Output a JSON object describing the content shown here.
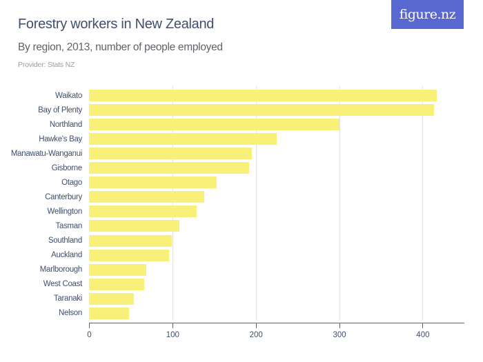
{
  "header": {
    "title": "Forestry workers in New Zealand",
    "subtitle": "By region, 2013, number of people employed",
    "provider": "Provider: Stats NZ",
    "logo": "figure.nz"
  },
  "colors": {
    "bar": "#f9f07a",
    "title": "#3e4f6e",
    "logo_bg": "#5968d0"
  },
  "chart_data": {
    "type": "bar",
    "orientation": "horizontal",
    "title": "Forestry workers in New Zealand",
    "subtitle": "By region, 2013, number of people employed",
    "xlabel": "",
    "ylabel": "",
    "categories": [
      "Waikato",
      "Bay of Plenty",
      "Northland",
      "Hawke's Bay",
      "Manawatu-Wanganui",
      "Gisborne",
      "Otago",
      "Canterbury",
      "Wellington",
      "Tasman",
      "Southland",
      "Auckland",
      "Marlborough",
      "West Coast",
      "Taranaki",
      "Nelson"
    ],
    "values": [
      417,
      414,
      300,
      225,
      195,
      192,
      153,
      138,
      129,
      108,
      99,
      96,
      69,
      66,
      54,
      48
    ],
    "xlim": [
      0,
      450
    ],
    "xticks": [
      "0",
      "100",
      "200",
      "300",
      "400"
    ],
    "grid": true,
    "legend": null
  }
}
